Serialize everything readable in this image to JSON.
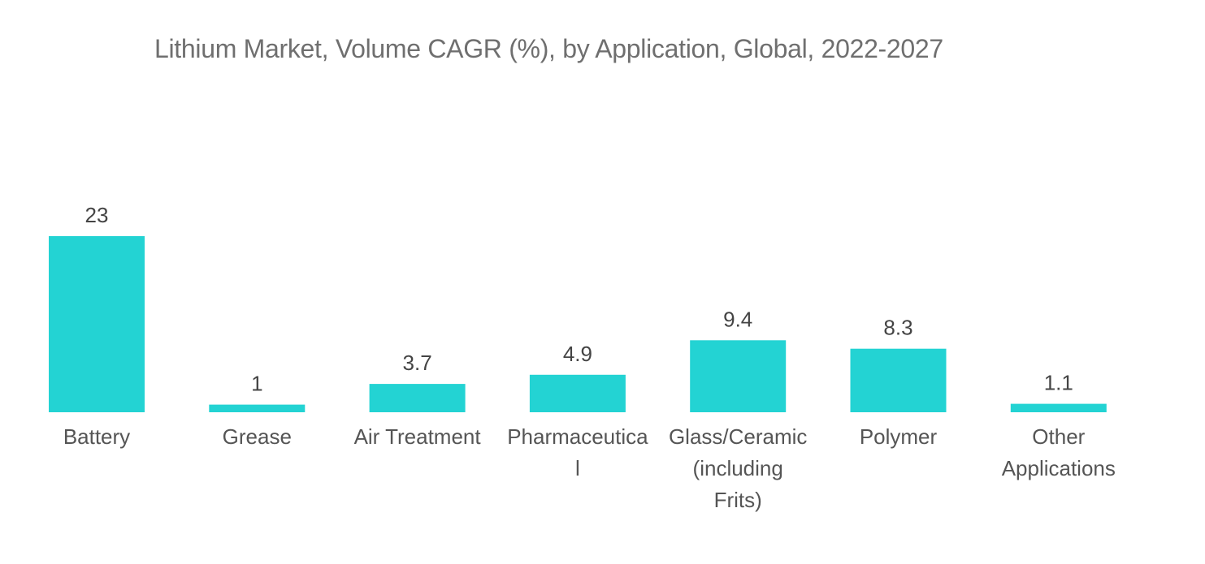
{
  "chart_data": {
    "type": "bar",
    "title": "Lithium Market, Volume CAGR (%), by Application, Global, 2022-2027",
    "categories": [
      [
        "Battery"
      ],
      [
        "Grease"
      ],
      [
        "Air Treatment"
      ],
      [
        "Pharmaceutica",
        "l"
      ],
      [
        "Glass/Ceramic",
        "(including",
        "Frits)"
      ],
      [
        "Polymer"
      ],
      [
        "Other",
        "Applications"
      ]
    ],
    "values": [
      23,
      1,
      3.7,
      4.9,
      9.4,
      8.3,
      1.1
    ],
    "value_labels": [
      "23",
      "1",
      "3.7",
      "4.9",
      "9.4",
      "8.3",
      "1.1"
    ],
    "xlabel": "",
    "ylabel": "",
    "ylim": [
      0,
      23
    ],
    "grid": false,
    "legend": "none",
    "bar_color": "#23d3d3"
  }
}
